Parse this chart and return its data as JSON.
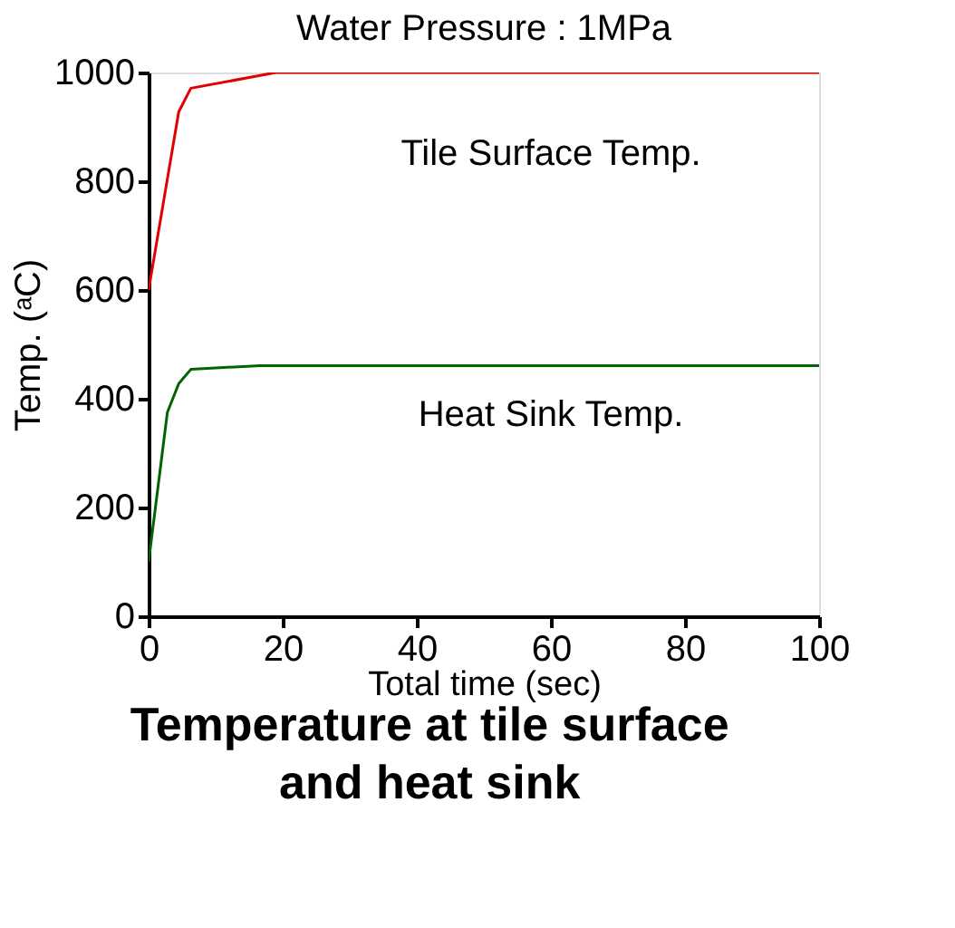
{
  "chart_data": {
    "type": "line",
    "title": "Temperature at tile surface and heat sink",
    "subtitle": "Water Pressure : 1MPa",
    "xlabel": "Total time (sec)",
    "ylabel": "Temp. (ᵃC)",
    "xlim": [
      0,
      100
    ],
    "xticks": [
      0,
      20,
      40,
      60,
      80,
      100
    ],
    "ylim": [
      0,
      1000
    ],
    "yticks": [
      0,
      200,
      400,
      600,
      800,
      1000
    ],
    "grid": false,
    "legend": false,
    "series": [
      {
        "name": "Tile Surface Temp.",
        "color": "#e00000",
        "x": [
          0,
          4.5,
          6.3,
          19,
          100
        ],
        "values": [
          600,
          928,
          971,
          1000,
          1000
        ]
      },
      {
        "name": "Heat Sink Temp.",
        "color": "#006400",
        "x": [
          0,
          2.8,
          4.5,
          6.3,
          16.6,
          100
        ],
        "values": [
          100,
          375,
          428,
          454,
          461,
          461
        ]
      }
    ]
  }
}
